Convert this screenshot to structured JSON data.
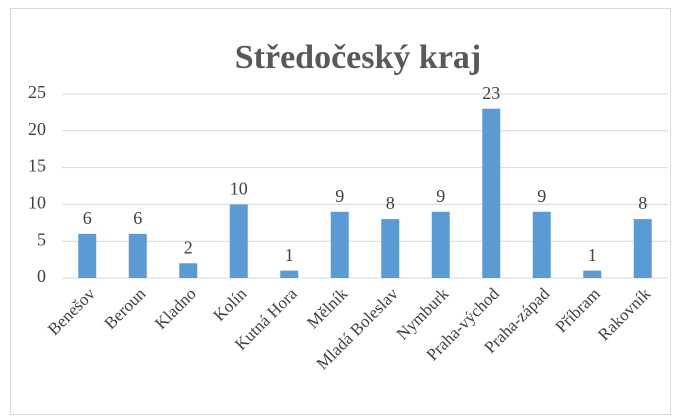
{
  "chart_data": {
    "type": "bar",
    "title": "Středočeský kraj",
    "categories": [
      "Benešov",
      "Beroun",
      "Kladno",
      "Kolín",
      "Kutná Hora",
      "Mělník",
      "Mladá Boleslav",
      "Nymburk",
      "Praha-východ",
      "Praha-západ",
      "Příbram",
      "Rakovník"
    ],
    "values": [
      6,
      6,
      2,
      10,
      1,
      9,
      8,
      9,
      23,
      9,
      1,
      8
    ],
    "color": "#5b9bd5",
    "ylim": [
      0,
      25
    ],
    "yticks": [
      0,
      5,
      10,
      15,
      20,
      25
    ],
    "grid": true
  }
}
